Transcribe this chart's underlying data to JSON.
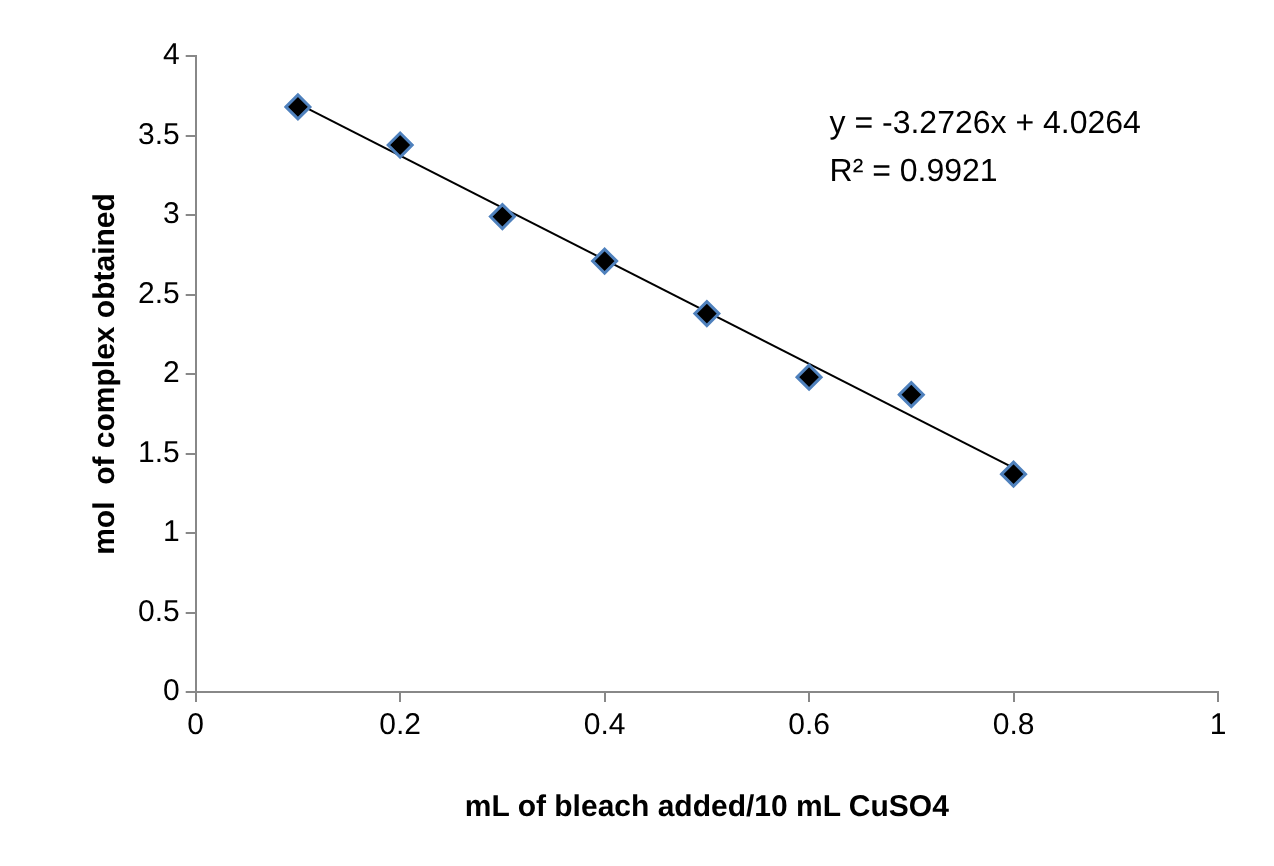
{
  "chart_data": {
    "type": "scatter",
    "xlabel": "mL of bleach added/10 mL CuSO4",
    "ylabel": "mol  of complex obtained",
    "x": [
      0.1,
      0.2,
      0.3,
      0.4,
      0.5,
      0.6,
      0.7,
      0.8
    ],
    "series": [
      {
        "color": "#000000",
        "marker": "diamond",
        "values": [
          3.68,
          3.44,
          2.99,
          2.71,
          2.38,
          1.98,
          1.87,
          1.37
        ]
      },
      {
        "type": "line",
        "color": "#000000",
        "marker": "none",
        "x": [
          0.1,
          0.8
        ],
        "values": [
          3.7,
          1.41
        ]
      }
    ],
    "xlim": [
      0,
      1
    ],
    "xticks": [
      0,
      0.2,
      0.4,
      0.6,
      0.8,
      1
    ],
    "ylim": [
      0,
      4
    ],
    "yticks": [
      0,
      0.5,
      1,
      1.5,
      2,
      2.5,
      3,
      3.5,
      4
    ],
    "grid": false,
    "legend": false,
    "annotations": [
      "y = -3.2726x + 4.0264",
      "R² = 0.9921"
    ]
  }
}
